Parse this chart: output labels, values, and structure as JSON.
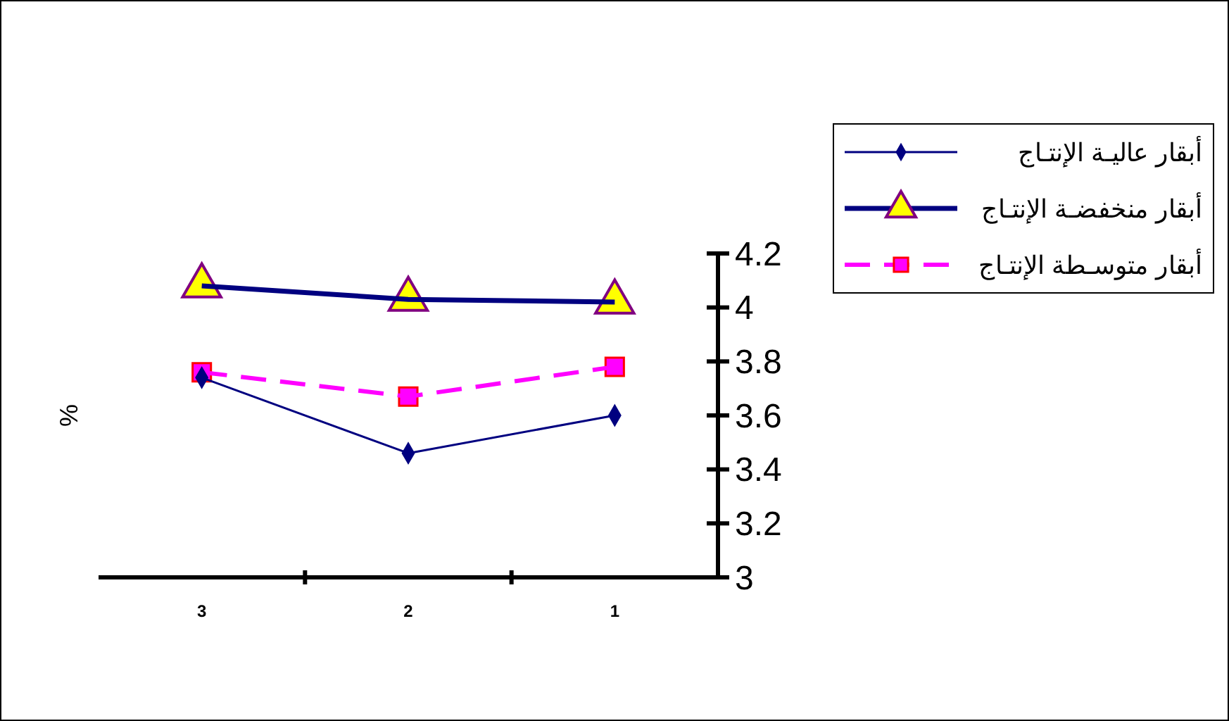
{
  "chart_data": {
    "type": "line",
    "ylabel": "%",
    "categories": [
      "3",
      "2",
      "1"
    ],
    "series": [
      {
        "name": "أبقار عاليـة الإنتـاج",
        "color": "#000080",
        "values": [
          3.74,
          3.46,
          3.6
        ],
        "marker": "diamond",
        "line_style": "solid"
      },
      {
        "name": "أبقار منخفضـة الإنتـاج",
        "color": "#000080",
        "values": [
          4.08,
          4.03,
          4.02
        ],
        "marker": "triangle",
        "line_style": "solid"
      },
      {
        "name": "أبقار متوسـطة الإنتـاج",
        "color": "#ff00ff",
        "values": [
          3.76,
          3.67,
          3.78
        ],
        "marker": "square",
        "line_style": "dashed"
      }
    ],
    "ylim": [
      3,
      4.2
    ],
    "yticks": [
      3,
      3.2,
      3.4,
      3.6,
      3.8,
      4,
      4.2
    ],
    "legend": "top right",
    "grid": false
  }
}
